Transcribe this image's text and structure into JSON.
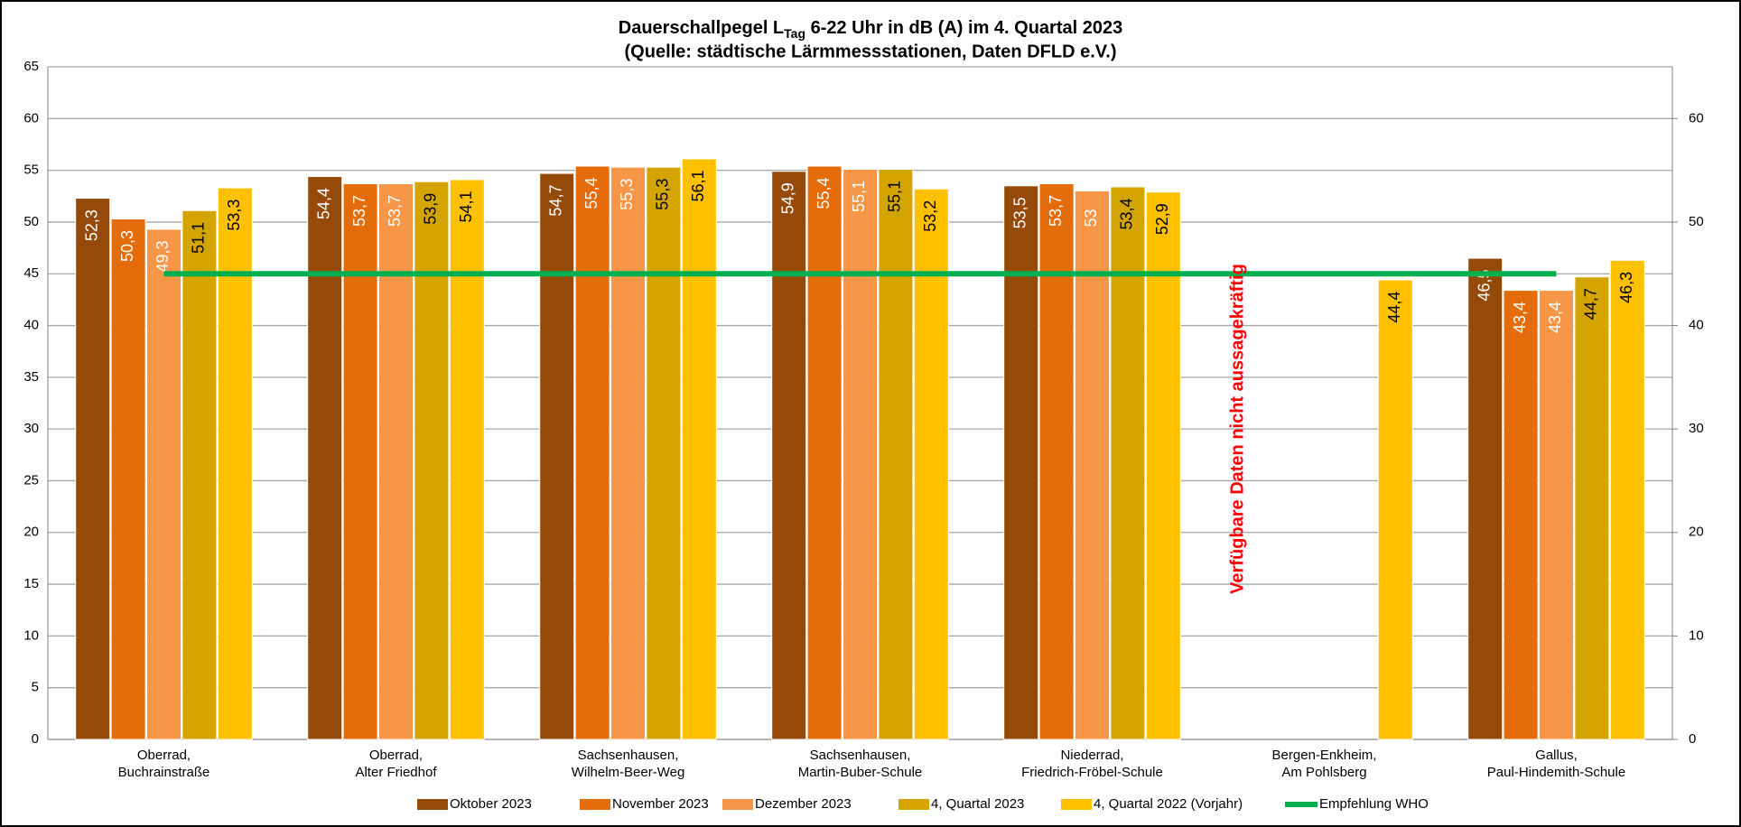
{
  "chart_data": {
    "type": "bar",
    "title": {
      "text": "Dauerschallpegel L",
      "subscript": "Tag",
      "rest": " 6-22 Uhr in dB (A) im 4. Quartal 2023"
    },
    "subtitle": "(Quelle: städtische Lärmmessstationen, Daten DFLD e.V.)",
    "categories": [
      [
        "Oberrad,",
        "Buchrainstraße"
      ],
      [
        "Oberrad,",
        "Alter Friedhof"
      ],
      [
        "Sachsenhausen,",
        "Wilhelm-Beer-Weg"
      ],
      [
        "Sachsenhausen,",
        "Martin-Buber-Schule"
      ],
      [
        "Niederrad,",
        "Friedrich-Fröbel-Schule"
      ],
      [
        "Bergen-Enkheim,",
        "Am Pohlsberg"
      ],
      [
        "Gallus,",
        "Paul-Hindemith-Schule"
      ]
    ],
    "series": [
      {
        "name": "Oktober 2023",
        "color": "#954a09",
        "label_color": "#ffffff",
        "values": [
          52.3,
          54.4,
          54.7,
          54.9,
          53.5,
          null,
          46.5
        ],
        "value_labels": [
          "52,3",
          "54,4",
          "54,7",
          "54,9",
          "53,5",
          null,
          "46,5"
        ]
      },
      {
        "name": "November 2023",
        "color": "#e46c0a",
        "label_color": "#ffffff",
        "values": [
          50.3,
          53.7,
          55.4,
          55.4,
          53.7,
          null,
          43.4
        ],
        "value_labels": [
          "50,3",
          "53,7",
          "55,4",
          "55,4",
          "53,7",
          null,
          "43,4"
        ]
      },
      {
        "name": "Dezember 2023",
        "color": "#f79646",
        "label_color": "#ffffff",
        "values": [
          49.3,
          53.7,
          55.3,
          55.1,
          53,
          null,
          43.4
        ],
        "value_labels": [
          "49,3",
          "53,7",
          "55,3",
          "55,1",
          "53",
          null,
          "43,4"
        ]
      },
      {
        "name": "4, Quartal 2023",
        "color": "#d4a500",
        "label_color": "#000000",
        "values": [
          51.1,
          53.9,
          55.3,
          55.1,
          53.4,
          null,
          44.7
        ],
        "value_labels": [
          "51,1",
          "53,9",
          "55,3",
          "55,1",
          "53,4",
          null,
          "44,7"
        ]
      },
      {
        "name": "4, Quartal 2022 (Vorjahr)",
        "color": "#ffc000",
        "label_color": "#000000",
        "values": [
          53.3,
          54.1,
          56.1,
          53.2,
          52.9,
          44.4,
          46.3
        ],
        "value_labels": [
          "53,3",
          "54,1",
          "56,1",
          "53,2",
          "52,9",
          "44,4",
          "46,3"
        ]
      },
      {
        "name": "Empfehlung WHO",
        "type": "line",
        "color": "#00b050",
        "values": [
          45,
          45,
          45,
          45,
          45,
          45,
          45
        ]
      }
    ],
    "annotation": "Verfügbare Daten nicht aussagekräftig",
    "annotation_color": "#ff0000",
    "ylim": [
      0,
      65
    ],
    "yticks": [
      0,
      5,
      10,
      15,
      20,
      25,
      30,
      35,
      40,
      45,
      50,
      55,
      60,
      65
    ],
    "y2lim": [
      0,
      65
    ],
    "y2ticks": [
      0,
      10,
      20,
      30,
      40,
      50,
      60
    ],
    "grid": true,
    "legend": "bottom"
  }
}
